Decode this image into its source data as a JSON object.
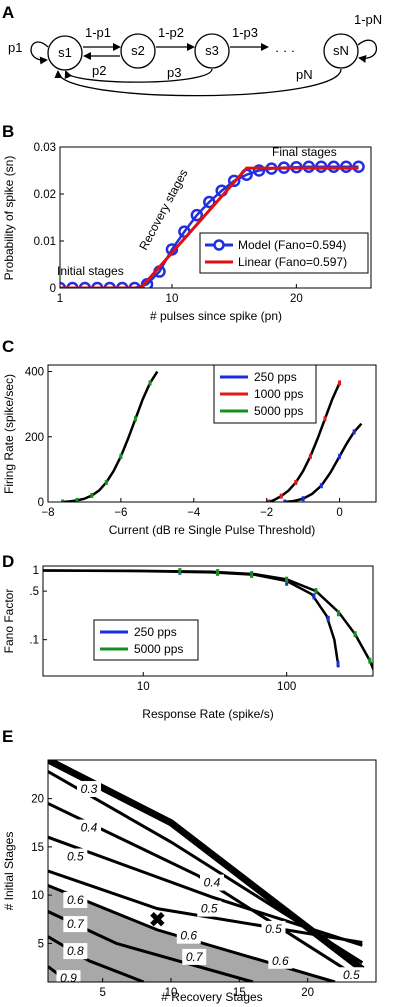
{
  "panel_labels": [
    "A",
    "B",
    "C",
    "D",
    "E"
  ],
  "panelA": {
    "states": [
      "s1",
      "s2",
      "s3",
      "sN"
    ],
    "ellipsis": "· · ·",
    "self_loop_labels": [
      "p1",
      "1-pN"
    ],
    "forward_labels": [
      "1-p1",
      "1-p2",
      "1-p3"
    ],
    "back_labels": [
      "p2",
      "p3",
      "pN"
    ]
  },
  "chart_data": [
    {
      "panel": "B",
      "type": "line",
      "xlabel": "# pulses since spike (pn)",
      "ylabel": "Probability of spike (sn)",
      "xlim": [
        1,
        26
      ],
      "ylim": [
        0,
        0.03
      ],
      "xticks": [
        1,
        10,
        20
      ],
      "yticks": [
        0,
        0.01,
        0.02,
        0.03
      ],
      "ytick_labels": [
        "0",
        "0.01",
        "0.02",
        "0.03"
      ],
      "annotations": [
        "Initial stages",
        "Recovery stages",
        "Final stages"
      ],
      "legend_position": "lower-right",
      "series": [
        {
          "name": "Model (Fano=0.594)",
          "color": "#2030e0",
          "marker": "circle",
          "x": [
            1,
            2,
            3,
            4,
            5,
            6,
            7,
            8,
            9,
            10,
            11,
            12,
            13,
            14,
            15,
            16,
            17,
            18,
            19,
            20,
            21,
            22,
            23,
            24,
            25
          ],
          "y": [
            0,
            0,
            0,
            0,
            0,
            0,
            0,
            0.0008,
            0.0035,
            0.0082,
            0.012,
            0.0155,
            0.0183,
            0.0207,
            0.0228,
            0.0241,
            0.025,
            0.0254,
            0.0256,
            0.0257,
            0.0258,
            0.0258,
            0.0258,
            0.0258,
            0.0258
          ]
        },
        {
          "name": "Linear (Fano=0.597)",
          "color": "#e01010",
          "x": [
            1,
            7.5,
            16,
            25
          ],
          "y": [
            0,
            0,
            0.0255,
            0.0255
          ]
        }
      ]
    },
    {
      "panel": "C",
      "type": "line",
      "xlabel": "Current (dB re Single Pulse Threshold)",
      "ylabel": "Firing Rate (spike/sec)",
      "xlim": [
        -8,
        1
      ],
      "ylim": [
        0,
        420
      ],
      "xticks": [
        -8,
        -6,
        -4,
        -2,
        0
      ],
      "yticks": [
        0,
        200,
        400
      ],
      "legend_position": "top-center",
      "series": [
        {
          "name": "250 pps",
          "color": "#1a2ee0",
          "x": [
            -1.5,
            -1.25,
            -1.0,
            -0.75,
            -0.5,
            -0.25,
            0.0,
            0.2,
            0.4,
            0.6
          ],
          "y": [
            0,
            3,
            10,
            25,
            50,
            90,
            140,
            180,
            215,
            240
          ]
        },
        {
          "name": "1000 pps",
          "color": "#e01a1a",
          "x": [
            -1.95,
            -1.8,
            -1.6,
            -1.4,
            -1.2,
            -1.0,
            -0.8,
            -0.6,
            -0.4,
            -0.2,
            0.0
          ],
          "y": [
            0,
            6,
            18,
            35,
            60,
            95,
            140,
            195,
            255,
            315,
            365
          ]
        },
        {
          "name": "5000 pps",
          "color": "#15901f",
          "x": [
            -7.6,
            -7.4,
            -7.2,
            -7.0,
            -6.8,
            -6.6,
            -6.4,
            -6.2,
            -6.0,
            -5.8,
            -5.6,
            -5.4,
            -5.2,
            -5.0
          ],
          "y": [
            0,
            2,
            5,
            10,
            20,
            35,
            60,
            95,
            140,
            195,
            255,
            315,
            365,
            400
          ]
        }
      ]
    },
    {
      "panel": "D",
      "type": "line",
      "xlabel": "Response Rate (spike/s)",
      "ylabel": "Fano Factor",
      "xscale": "log",
      "yscale": "log",
      "xlim": [
        2,
        400
      ],
      "ylim": [
        0.03,
        1.15
      ],
      "xticks": [
        10,
        100
      ],
      "yticks": [
        0.1,
        0.5,
        1
      ],
      "ytick_labels": [
        ".1",
        ".5",
        "1"
      ],
      "legend_position": "center-left",
      "series": [
        {
          "name": "250 pps",
          "color": "#1a2ee0",
          "x": [
            18,
            33,
            57,
            100,
            155,
            195,
            228
          ],
          "y": [
            0.95,
            0.92,
            0.86,
            0.66,
            0.42,
            0.2,
            0.045
          ]
        },
        {
          "name": "5000 pps",
          "color": "#15901f",
          "x": [
            18,
            33,
            57,
            100,
            160,
            230,
            300,
            380
          ],
          "y": [
            0.97,
            0.94,
            0.88,
            0.73,
            0.5,
            0.24,
            0.12,
            0.05
          ]
        }
      ]
    },
    {
      "panel": "E",
      "type": "heatmap",
      "xlabel": "# Recovery Stages",
      "ylabel": "# Initial Stages",
      "xlim": [
        1,
        25
      ],
      "ylim": [
        1,
        24
      ],
      "xticks": [
        5,
        10,
        15,
        20
      ],
      "yticks": [
        5,
        10,
        15,
        20
      ],
      "contour_levels": [
        0.3,
        0.4,
        0.5,
        0.6,
        0.7,
        0.8,
        0.9
      ],
      "contour_labels": [
        {
          "value": "0.3",
          "x": 4,
          "y": 21
        },
        {
          "value": "0.4",
          "x": 4,
          "y": 17
        },
        {
          "value": "0.5",
          "x": 3,
          "y": 14
        },
        {
          "value": "0.6",
          "x": 3,
          "y": 9.5
        },
        {
          "value": "0.7",
          "x": 3,
          "y": 7
        },
        {
          "value": "0.8",
          "x": 3,
          "y": 4.2
        },
        {
          "value": "0.9",
          "x": 2.5,
          "y": 1.4
        },
        {
          "value": "0.4",
          "x": 13,
          "y": 11.3
        },
        {
          "value": "0.5",
          "x": 12.8,
          "y": 8.6
        },
        {
          "value": "0.6",
          "x": 11.3,
          "y": 5.8
        },
        {
          "value": "0.7",
          "x": 11.7,
          "y": 3.6
        },
        {
          "value": "0.5",
          "x": 17.5,
          "y": 6.5
        },
        {
          "value": "0.6",
          "x": 18,
          "y": 3.2
        },
        {
          "value": "0.5",
          "x": 23.2,
          "y": 1.7
        }
      ],
      "shaded_region_threshold": 0.6,
      "marker": {
        "symbol": "✖",
        "x": 9,
        "y": 7.5
      }
    }
  ]
}
